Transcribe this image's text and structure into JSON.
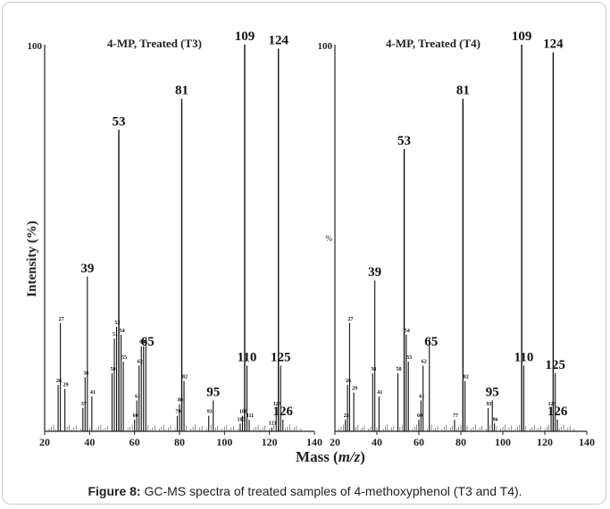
{
  "caption": {
    "label": "Figure 8:",
    "text": " GC-MS spectra of treated samples of 4-methoxyphenol (T3 and T4)."
  },
  "xlabel_prefix": "Mass (",
  "xlabel_italic": "m/z",
  "xlabel_suffix": ")",
  "ylabel": "Intensity (%)",
  "chart_data": [
    {
      "type": "bar",
      "title": "4-MP, Treated (T3)",
      "ymax_label": "100",
      "xlim": [
        20,
        140
      ],
      "ylim": [
        0,
        100
      ],
      "xticks": [
        20,
        40,
        60,
        80,
        100,
        120,
        140
      ],
      "peaks": [
        {
          "x": 26,
          "y": 12,
          "label": "26"
        },
        {
          "x": 27,
          "y": 28,
          "label": "27"
        },
        {
          "x": 29,
          "y": 11,
          "label": "29"
        },
        {
          "x": 37,
          "y": 6,
          "label": "37"
        },
        {
          "x": 38,
          "y": 14,
          "label": "38"
        },
        {
          "x": 39,
          "y": 40,
          "label": "39"
        },
        {
          "x": 41,
          "y": 9,
          "label": "41"
        },
        {
          "x": 50,
          "y": 15,
          "label": "50"
        },
        {
          "x": 51,
          "y": 24,
          "label": "51"
        },
        {
          "x": 52,
          "y": 27,
          "label": "52"
        },
        {
          "x": 53,
          "y": 78,
          "label": "53"
        },
        {
          "x": 54,
          "y": 25,
          "label": "54"
        },
        {
          "x": 55,
          "y": 18,
          "label": "55"
        },
        {
          "x": 60,
          "y": 3,
          "label": "60"
        },
        {
          "x": 61,
          "y": 8,
          "label": "61"
        },
        {
          "x": 62,
          "y": 17,
          "label": "62"
        },
        {
          "x": 63,
          "y": 22,
          "label": "63"
        },
        {
          "x": 64,
          "y": 22,
          "label": "64"
        },
        {
          "x": 65,
          "y": 24,
          "label": ""
        },
        {
          "x": 79,
          "y": 4,
          "label": "79"
        },
        {
          "x": 80,
          "y": 7,
          "label": "80"
        },
        {
          "x": 81,
          "y": 86,
          "label": "81"
        },
        {
          "x": 82,
          "y": 13,
          "label": "82"
        },
        {
          "x": 93,
          "y": 4,
          "label": "93"
        },
        {
          "x": 95,
          "y": 8,
          "label": "95"
        },
        {
          "x": 107,
          "y": 2,
          "label": "107"
        },
        {
          "x": 108,
          "y": 4,
          "label": "108"
        },
        {
          "x": 109,
          "y": 100,
          "label": "109"
        },
        {
          "x": 110,
          "y": 17,
          "label": "110"
        },
        {
          "x": 111,
          "y": 3,
          "label": "111"
        },
        {
          "x": 121,
          "y": 1,
          "label": "121"
        },
        {
          "x": 123,
          "y": 6,
          "label": "123"
        },
        {
          "x": 124,
          "y": 99,
          "label": "124"
        },
        {
          "x": 125,
          "y": 17,
          "label": "125"
        },
        {
          "x": 126,
          "y": 3,
          "label": "126"
        }
      ],
      "large_labels": [
        "39",
        "53",
        "65",
        "81",
        "95",
        "109",
        "110",
        "124",
        "125",
        "126"
      ]
    },
    {
      "type": "bar",
      "title": "4-MP, Treated (T4)",
      "ymax_label": "100",
      "side_mark": "%",
      "xlim": [
        20,
        140
      ],
      "ylim": [
        0,
        100
      ],
      "xticks": [
        20,
        40,
        60,
        80,
        100,
        120,
        140
      ],
      "peaks": [
        {
          "x": 25,
          "y": 3,
          "label": "25"
        },
        {
          "x": 26,
          "y": 12,
          "label": "26"
        },
        {
          "x": 27,
          "y": 28,
          "label": "27"
        },
        {
          "x": 29,
          "y": 10,
          "label": "29"
        },
        {
          "x": 38,
          "y": 15,
          "label": "38"
        },
        {
          "x": 39,
          "y": 39,
          "label": "39"
        },
        {
          "x": 41,
          "y": 9,
          "label": "41"
        },
        {
          "x": 50,
          "y": 15,
          "label": "50"
        },
        {
          "x": 53,
          "y": 73,
          "label": "53"
        },
        {
          "x": 54,
          "y": 25,
          "label": "54"
        },
        {
          "x": 55,
          "y": 18,
          "label": "55"
        },
        {
          "x": 60,
          "y": 3,
          "label": "60"
        },
        {
          "x": 61,
          "y": 8,
          "label": "61"
        },
        {
          "x": 62,
          "y": 17,
          "label": "62"
        },
        {
          "x": 65,
          "y": 24,
          "label": ""
        },
        {
          "x": 77,
          "y": 3,
          "label": "77"
        },
        {
          "x": 81,
          "y": 86,
          "label": "81"
        },
        {
          "x": 82,
          "y": 13,
          "label": "82"
        },
        {
          "x": 93,
          "y": 6,
          "label": "93"
        },
        {
          "x": 95,
          "y": 8,
          "label": "95"
        },
        {
          "x": 96,
          "y": 2,
          "label": "96"
        },
        {
          "x": 109,
          "y": 100,
          "label": "109"
        },
        {
          "x": 110,
          "y": 17,
          "label": "110"
        },
        {
          "x": 123,
          "y": 6,
          "label": "123"
        },
        {
          "x": 124,
          "y": 98,
          "label": "124"
        },
        {
          "x": 125,
          "y": 15,
          "label": "125"
        },
        {
          "x": 126,
          "y": 3,
          "label": "126"
        }
      ],
      "large_labels": [
        "39",
        "53",
        "65",
        "81",
        "95",
        "109",
        "110",
        "124",
        "125",
        "126"
      ]
    }
  ]
}
